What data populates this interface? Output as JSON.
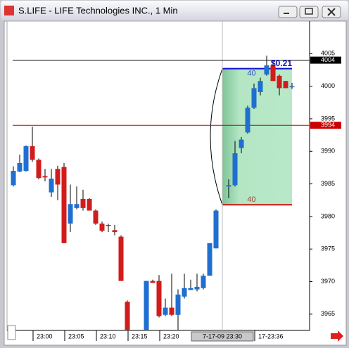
{
  "window": {
    "title": "S.LIFE - LIFE Technologies INC., 1 Min"
  },
  "chart_data": {
    "type": "candlestick",
    "categories": [
      null,
      null,
      null,
      "23:00",
      null,
      null,
      null,
      null,
      "23:05",
      null,
      null,
      null,
      null,
      "23:10",
      null,
      null,
      null,
      null,
      "23:15",
      null,
      null,
      null,
      null,
      "23:20",
      null,
      null,
      null,
      null,
      null,
      null,
      null,
      null,
      null,
      "7-17-09 23:30",
      null,
      null,
      null,
      null,
      "17-23:36",
      null,
      null,
      null,
      null,
      null,
      null
    ],
    "open": [
      3984.8,
      3986.9,
      3987.0,
      3990.8,
      3988.7,
      3986.2,
      3983.7,
      3987.3,
      3987.6,
      3978.9,
      3981.3,
      3982.7,
      3982.7,
      3980.9,
      3978.9,
      3978.7,
      3977.9,
      3976.9,
      3966.9,
      null,
      null,
      3962.6,
      3970.1,
      3970.1,
      3964.9,
      3966.0,
      3964.9,
      3967.7,
      3968.7,
      3968.8,
      3969.0,
      3970.9,
      3975.1,
      null,
      3984.6,
      3984.8,
      3990.5,
      3992.9,
      3996.7,
      3999.1,
      4001.8,
      4003.2,
      4001.6,
      4000.8,
      4000.0
    ],
    "high": [
      3987.7,
      3989.5,
      3990.9,
      3993.8,
      3988.9,
      3987.3,
      3987.3,
      3987.8,
      3988.2,
      3984.9,
      3984.6,
      3984.1,
      3982.8,
      3981.1,
      3979.2,
      3978.9,
      3978.7,
      3977.1,
      3967.1,
      null,
      null,
      3970.1,
      3970.3,
      3971.0,
      3967.4,
      3971.2,
      3968.8,
      3971.2,
      3970.3,
      3971.2,
      3971.2,
      3975.9,
      3981.1,
      null,
      3985.7,
      3991.6,
      3992.2,
      3997.0,
      4000.4,
      4001.3,
      4004.7,
      4004.0,
      4001.8,
      4000.8,
      4000.5
    ],
    "low": [
      3984.6,
      3986.8,
      3986.9,
      3988.4,
      3985.7,
      3985.4,
      3983.0,
      3982.5,
      3975.9,
      3977.6,
      3981.1,
      3980.9,
      3980.9,
      3978.7,
      3977.6,
      3977.6,
      3977.1,
      3970.1,
      3962.6,
      null,
      null,
      3962.6,
      3969.8,
      3964.5,
      3964.7,
      3964.7,
      3962.6,
      3967.4,
      3968.7,
      3968.5,
      3968.8,
      3970.9,
      3975.1,
      null,
      3982.8,
      3984.6,
      3989.7,
      3992.7,
      3996.5,
      3998.6,
      4001.6,
      4000.8,
      3998.6,
      3999.7,
      3999.6
    ],
    "close": [
      3987.0,
      3988.2,
      3990.8,
      3988.7,
      3985.9,
      3986.0,
      3985.8,
      3984.9,
      3975.9,
      3981.9,
      3981.9,
      3981.3,
      3980.9,
      3978.9,
      3977.8,
      3978.6,
      3977.6,
      3970.1,
      3962.6,
      null,
      null,
      3970.1,
      3969.8,
      3964.7,
      3966.0,
      3964.9,
      3968.0,
      3969.0,
      3969.0,
      3969.2,
      3970.9,
      3975.9,
      3980.9,
      null,
      3984.8,
      3989.7,
      3991.8,
      3996.7,
      3999.7,
      4000.8,
      4003.2,
      4000.8,
      3999.7,
      3999.7,
      4000.0
    ],
    "up_color": "#1f6fd0",
    "down_color": "#d21c1c",
    "ylim": [
      3962.5,
      4010
    ],
    "yticks": [
      3965,
      3970,
      3975,
      3980,
      3985,
      3990,
      3995,
      4000,
      4005
    ],
    "crosshair_category": 33,
    "hlines": [
      {
        "value": 4004,
        "color": "#000000"
      },
      {
        "value": 3994,
        "color": "#cc0000"
      }
    ],
    "measure": {
      "top": 4002.7,
      "bottom": 3981.8,
      "top_label": "40",
      "bottom_label": "40",
      "range_label": "$0.21"
    }
  }
}
